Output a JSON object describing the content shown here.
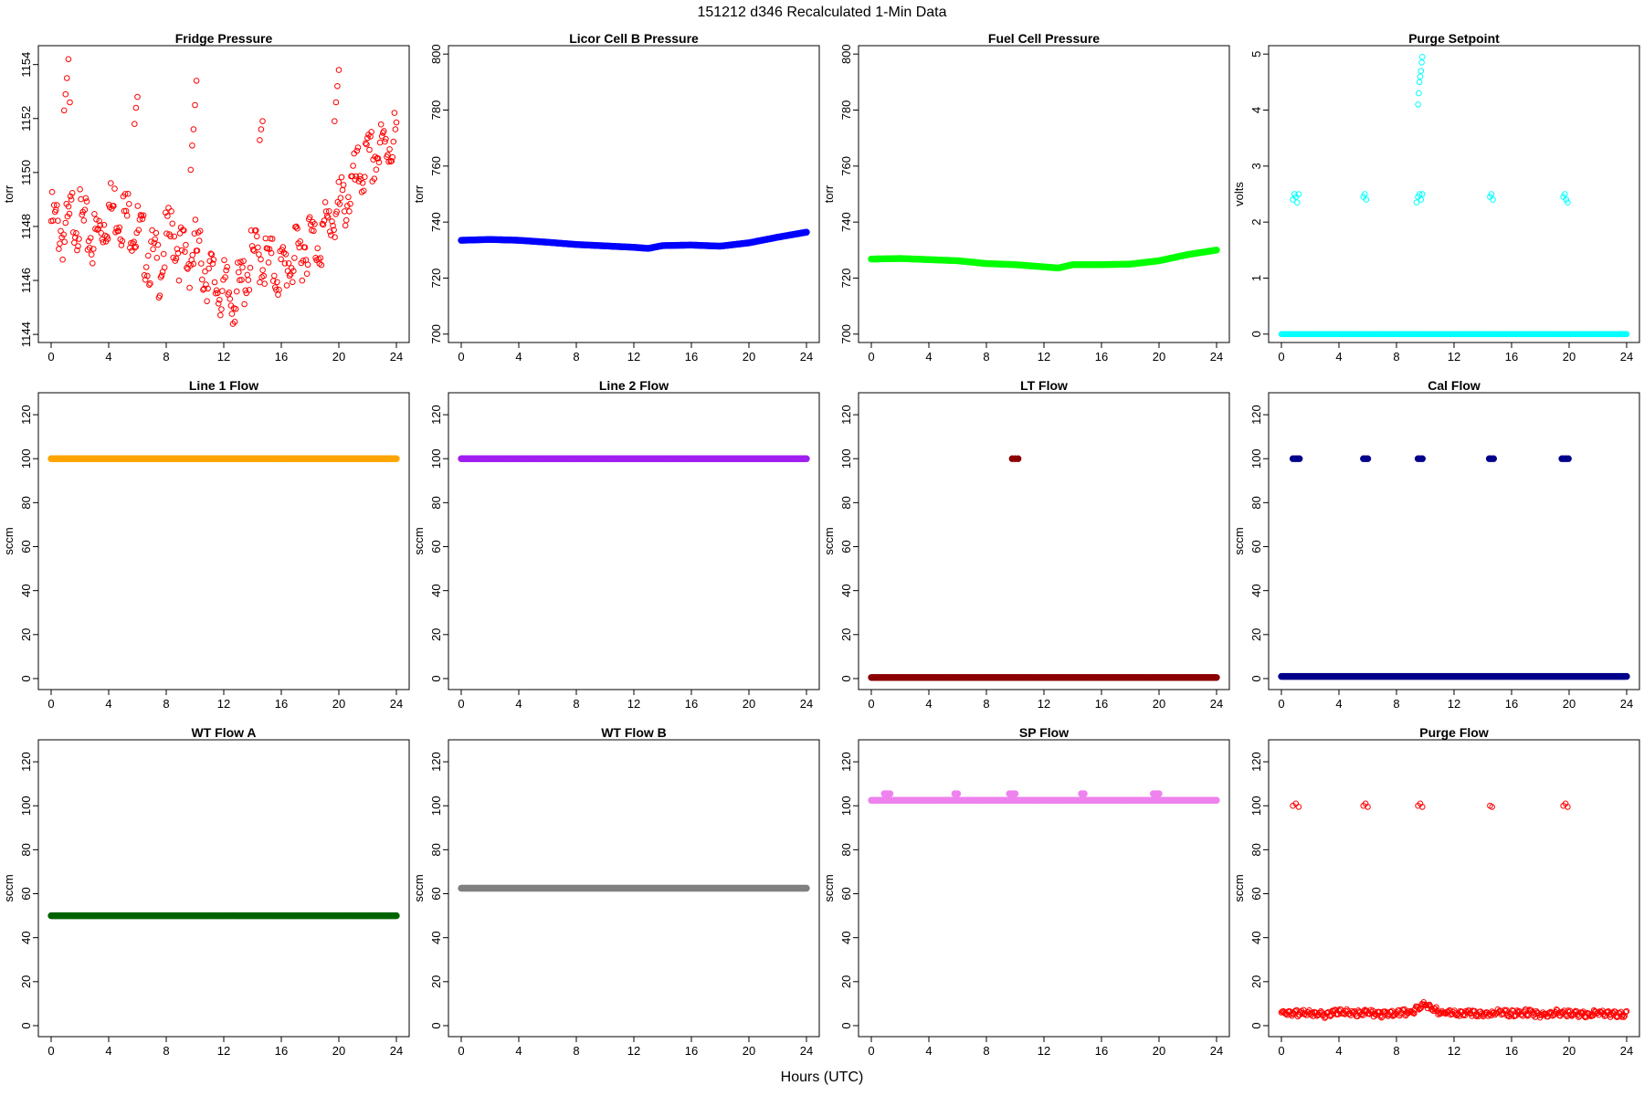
{
  "title": "151212   d346   Recalculated 1-Min Data",
  "xlabel": "Hours (UTC)",
  "chart_data": [
    {
      "type": "scatter",
      "title": "Fridge Pressure",
      "ylabel": "torr",
      "color": "#ff0000",
      "marker": "open",
      "xlim": [
        0,
        24
      ],
      "ylim": [
        1143.7,
        1154.7
      ],
      "yticks": [
        1144,
        1146,
        1148,
        1150,
        1152,
        1154
      ],
      "xticks": [
        0,
        4,
        8,
        12,
        16,
        20,
        24
      ],
      "series": [
        {
          "x": [
            0,
            0.5,
            1,
            1.5,
            2,
            2.5,
            3,
            3.5,
            4,
            4.5,
            5,
            5.5,
            6,
            6.5,
            7,
            7.5,
            8,
            8.5,
            9,
            9.5,
            10,
            10.5,
            11,
            11.5,
            12,
            12.5,
            13,
            13.5,
            14,
            14.5,
            15,
            15.5,
            16,
            16.5,
            17,
            17.5,
            18,
            18.5,
            19,
            19.5,
            20,
            20.5,
            21,
            21.5,
            22,
            22.5,
            23,
            23.5,
            24
          ],
          "y": [
            1148.2,
            1148.0,
            1147.6,
            1148.5,
            1148.2,
            1147.8,
            1147.5,
            1148.0,
            1148.6,
            1148.7,
            1148.4,
            1148.3,
            1147.8,
            1147.2,
            1146.8,
            1146.5,
            1147.4,
            1147.8,
            1147.0,
            1146.7,
            1147.2,
            1146.6,
            1146.2,
            1145.8,
            1145.6,
            1145.4,
            1145.5,
            1146.2,
            1146.8,
            1147.0,
            1146.6,
            1146.5,
            1146.3,
            1146.7,
            1146.8,
            1147.2,
            1147.6,
            1147.4,
            1147.8,
            1148.3,
            1148.6,
            1149.0,
            1149.5,
            1150.0,
            1150.3,
            1150.6,
            1150.8,
            1151.1,
            1151.4
          ]
        },
        {
          "x": [
            0.9,
            1.0,
            1.1,
            1.2,
            1.3,
            5.8,
            5.9,
            6.0,
            9.7,
            9.8,
            9.9,
            10.0,
            10.1,
            14.5,
            14.6,
            14.7,
            19.7,
            19.8,
            19.9,
            20.0
          ],
          "y": [
            1152.3,
            1152.9,
            1153.5,
            1154.2,
            1152.6,
            1151.8,
            1152.4,
            1152.8,
            1150.1,
            1151.0,
            1151.6,
            1152.5,
            1153.4,
            1151.2,
            1151.6,
            1151.9,
            1151.9,
            1152.6,
            1153.2,
            1153.8
          ]
        }
      ]
    },
    {
      "type": "scatter",
      "title": "Licor Cell B Pressure",
      "ylabel": "torr",
      "color": "#0000ff",
      "marker": "filled",
      "xlim": [
        0,
        24
      ],
      "ylim": [
        697,
        803
      ],
      "yticks": [
        700,
        720,
        740,
        760,
        780,
        800
      ],
      "xticks": [
        0,
        4,
        8,
        12,
        16,
        20,
        24
      ],
      "series": [
        {
          "x": [
            0,
            2,
            4,
            6,
            8,
            10,
            12,
            13,
            14,
            16,
            18,
            20,
            22,
            24
          ],
          "y": [
            733.5,
            733.8,
            733.5,
            732.8,
            732.0,
            731.5,
            731.0,
            730.6,
            731.6,
            731.8,
            731.4,
            732.6,
            734.6,
            736.4
          ]
        }
      ]
    },
    {
      "type": "scatter",
      "title": "Fuel Cell Pressure",
      "ylabel": "torr",
      "color": "#00ff00",
      "marker": "filled",
      "xlim": [
        0,
        24
      ],
      "ylim": [
        697,
        803
      ],
      "yticks": [
        700,
        720,
        740,
        760,
        780,
        800
      ],
      "xticks": [
        0,
        4,
        8,
        12,
        16,
        20,
        24
      ],
      "series": [
        {
          "x": [
            0,
            2,
            4,
            6,
            8,
            10,
            12,
            13,
            14,
            16,
            18,
            20,
            22,
            24
          ],
          "y": [
            726.8,
            727.0,
            726.6,
            726.2,
            725.2,
            724.8,
            724.0,
            723.6,
            724.8,
            724.8,
            725.0,
            726.2,
            728.4,
            730.0
          ]
        }
      ]
    },
    {
      "type": "scatter",
      "title": "Purge Setpoint",
      "ylabel": "volts",
      "color": "#00ffff",
      "marker": "open",
      "xlim": [
        0,
        24
      ],
      "ylim": [
        -0.15,
        5.15
      ],
      "yticks": [
        0,
        1,
        2,
        3,
        4,
        5
      ],
      "xticks": [
        0,
        4,
        8,
        12,
        16,
        20,
        24
      ],
      "series": [
        {
          "x": [
            0,
            4,
            8,
            12,
            16,
            20,
            24
          ],
          "y": [
            0,
            0,
            0,
            0,
            0,
            0,
            0
          ]
        },
        {
          "x": [
            0.8,
            0.9,
            1.0,
            1.1,
            1.2,
            5.7,
            5.8,
            5.9,
            9.4,
            9.5,
            9.6,
            9.7,
            9.8,
            14.5,
            14.6,
            14.7,
            19.6,
            19.7,
            19.8,
            19.9
          ],
          "y": [
            2.4,
            2.5,
            2.45,
            2.35,
            2.5,
            2.45,
            2.5,
            2.4,
            2.35,
            2.45,
            2.5,
            2.4,
            2.5,
            2.45,
            2.5,
            2.4,
            2.45,
            2.5,
            2.4,
            2.35
          ]
        },
        {
          "x": [
            9.5,
            9.55,
            9.6,
            9.65,
            9.7,
            9.75,
            9.8
          ],
          "y": [
            4.1,
            4.3,
            4.5,
            4.6,
            4.7,
            4.85,
            4.95
          ]
        }
      ]
    },
    {
      "type": "scatter",
      "title": "Line 1 Flow",
      "ylabel": "sccm",
      "color": "#ffa500",
      "marker": "filled",
      "xlim": [
        0,
        24
      ],
      "ylim": [
        -5,
        130
      ],
      "yticks": [
        0,
        20,
        40,
        60,
        80,
        100,
        120
      ],
      "xticks": [
        0,
        4,
        8,
        12,
        16,
        20,
        24
      ],
      "series": [
        {
          "x": [
            0,
            24
          ],
          "y": [
            100,
            100
          ]
        }
      ]
    },
    {
      "type": "scatter",
      "title": "Line 2 Flow",
      "ylabel": "sccm",
      "color": "#a020f0",
      "marker": "filled",
      "xlim": [
        0,
        24
      ],
      "ylim": [
        -5,
        130
      ],
      "yticks": [
        0,
        20,
        40,
        60,
        80,
        100,
        120
      ],
      "xticks": [
        0,
        4,
        8,
        12,
        16,
        20,
        24
      ],
      "series": [
        {
          "x": [
            0,
            24
          ],
          "y": [
            100,
            100
          ]
        }
      ]
    },
    {
      "type": "scatter",
      "title": "LT Flow",
      "ylabel": "sccm",
      "color": "#8b0000",
      "marker": "filled",
      "xlim": [
        0,
        24
      ],
      "ylim": [
        -5,
        130
      ],
      "yticks": [
        0,
        20,
        40,
        60,
        80,
        100,
        120
      ],
      "xticks": [
        0,
        4,
        8,
        12,
        16,
        20,
        24
      ],
      "series": [
        {
          "x": [
            0,
            24
          ],
          "y": [
            0.5,
            0.5
          ]
        },
        {
          "x": [
            9.8,
            10.0,
            10.2
          ],
          "y": [
            100,
            100,
            100
          ]
        }
      ]
    },
    {
      "type": "scatter",
      "title": "Cal Flow",
      "ylabel": "sccm",
      "color": "#00008b",
      "marker": "filled",
      "xlim": [
        0,
        24
      ],
      "ylim": [
        -5,
        130
      ],
      "yticks": [
        0,
        20,
        40,
        60,
        80,
        100,
        120
      ],
      "xticks": [
        0,
        4,
        8,
        12,
        16,
        20,
        24
      ],
      "series": [
        {
          "x": [
            0,
            24
          ],
          "y": [
            1,
            1
          ]
        },
        {
          "x": [
            0.8,
            0.95,
            1.1,
            1.25,
            5.7,
            5.85,
            6.0,
            9.5,
            9.65,
            9.8,
            14.45,
            14.6,
            14.75,
            19.5,
            19.65,
            19.8,
            19.95
          ],
          "y": [
            100,
            100,
            100,
            100,
            100,
            100,
            100,
            100,
            100,
            100,
            100,
            100,
            100,
            100,
            100,
            100,
            100
          ]
        }
      ]
    },
    {
      "type": "scatter",
      "title": "WT Flow A",
      "ylabel": "sccm",
      "color": "#006400",
      "marker": "filled",
      "xlim": [
        0,
        24
      ],
      "ylim": [
        -5,
        130
      ],
      "yticks": [
        0,
        20,
        40,
        60,
        80,
        100,
        120
      ],
      "xticks": [
        0,
        4,
        8,
        12,
        16,
        20,
        24
      ],
      "series": [
        {
          "x": [
            0,
            24
          ],
          "y": [
            50,
            50
          ]
        }
      ]
    },
    {
      "type": "scatter",
      "title": "WT Flow B",
      "ylabel": "sccm",
      "color": "#808080",
      "marker": "filled",
      "xlim": [
        0,
        24
      ],
      "ylim": [
        -5,
        130
      ],
      "yticks": [
        0,
        20,
        40,
        60,
        80,
        100,
        120
      ],
      "xticks": [
        0,
        4,
        8,
        12,
        16,
        20,
        24
      ],
      "series": [
        {
          "x": [
            0,
            24
          ],
          "y": [
            62.5,
            62.5
          ]
        }
      ]
    },
    {
      "type": "scatter",
      "title": "SP Flow",
      "ylabel": "sccm",
      "color": "#ee82ee",
      "marker": "filled",
      "xlim": [
        0,
        24
      ],
      "ylim": [
        -5,
        130
      ],
      "yticks": [
        0,
        20,
        40,
        60,
        80,
        100,
        120
      ],
      "xticks": [
        0,
        4,
        8,
        12,
        16,
        20,
        24
      ],
      "series": [
        {
          "x": [
            0,
            24
          ],
          "y": [
            102.5,
            102.5
          ]
        },
        {
          "x": [
            0.9,
            1.1,
            1.3,
            5.8,
            6.0,
            9.6,
            9.8,
            10.0,
            14.6,
            14.8,
            19.6,
            19.8,
            20.0
          ],
          "y": [
            105.5,
            105.5,
            105.5,
            105.5,
            105.5,
            105.5,
            105.5,
            105.5,
            105.5,
            105.5,
            105.5,
            105.5,
            105.5
          ]
        }
      ]
    },
    {
      "type": "scatter",
      "title": "Purge Flow",
      "ylabel": "sccm",
      "color": "#ff0000",
      "marker": "open",
      "xlim": [
        0,
        24
      ],
      "ylim": [
        -5,
        130
      ],
      "yticks": [
        0,
        20,
        40,
        60,
        80,
        100,
        120
      ],
      "xticks": [
        0,
        4,
        8,
        12,
        16,
        20,
        24
      ],
      "series": [
        {
          "x": [
            0,
            1,
            2,
            3,
            4,
            5,
            6,
            7,
            8,
            9,
            10,
            11,
            12,
            13,
            14,
            15,
            16,
            17,
            18,
            19,
            20,
            21,
            22,
            23,
            24
          ],
          "y": [
            6,
            5.5,
            6,
            5,
            6.5,
            5.5,
            6,
            5,
            6,
            6,
            10,
            6,
            5.5,
            6,
            5,
            6,
            5.5,
            6,
            5,
            6,
            5.5,
            5,
            6,
            5,
            5.5
          ]
        },
        {
          "x": [
            0.8,
            1.0,
            1.2,
            5.7,
            5.85,
            6.0,
            9.5,
            9.65,
            9.8,
            14.5,
            14.65,
            19.6,
            19.75,
            19.9
          ],
          "y": [
            100,
            101,
            99.5,
            100,
            101,
            99.5,
            100,
            101,
            99.5,
            100,
            99.5,
            100,
            101,
            99.5
          ]
        }
      ]
    }
  ]
}
